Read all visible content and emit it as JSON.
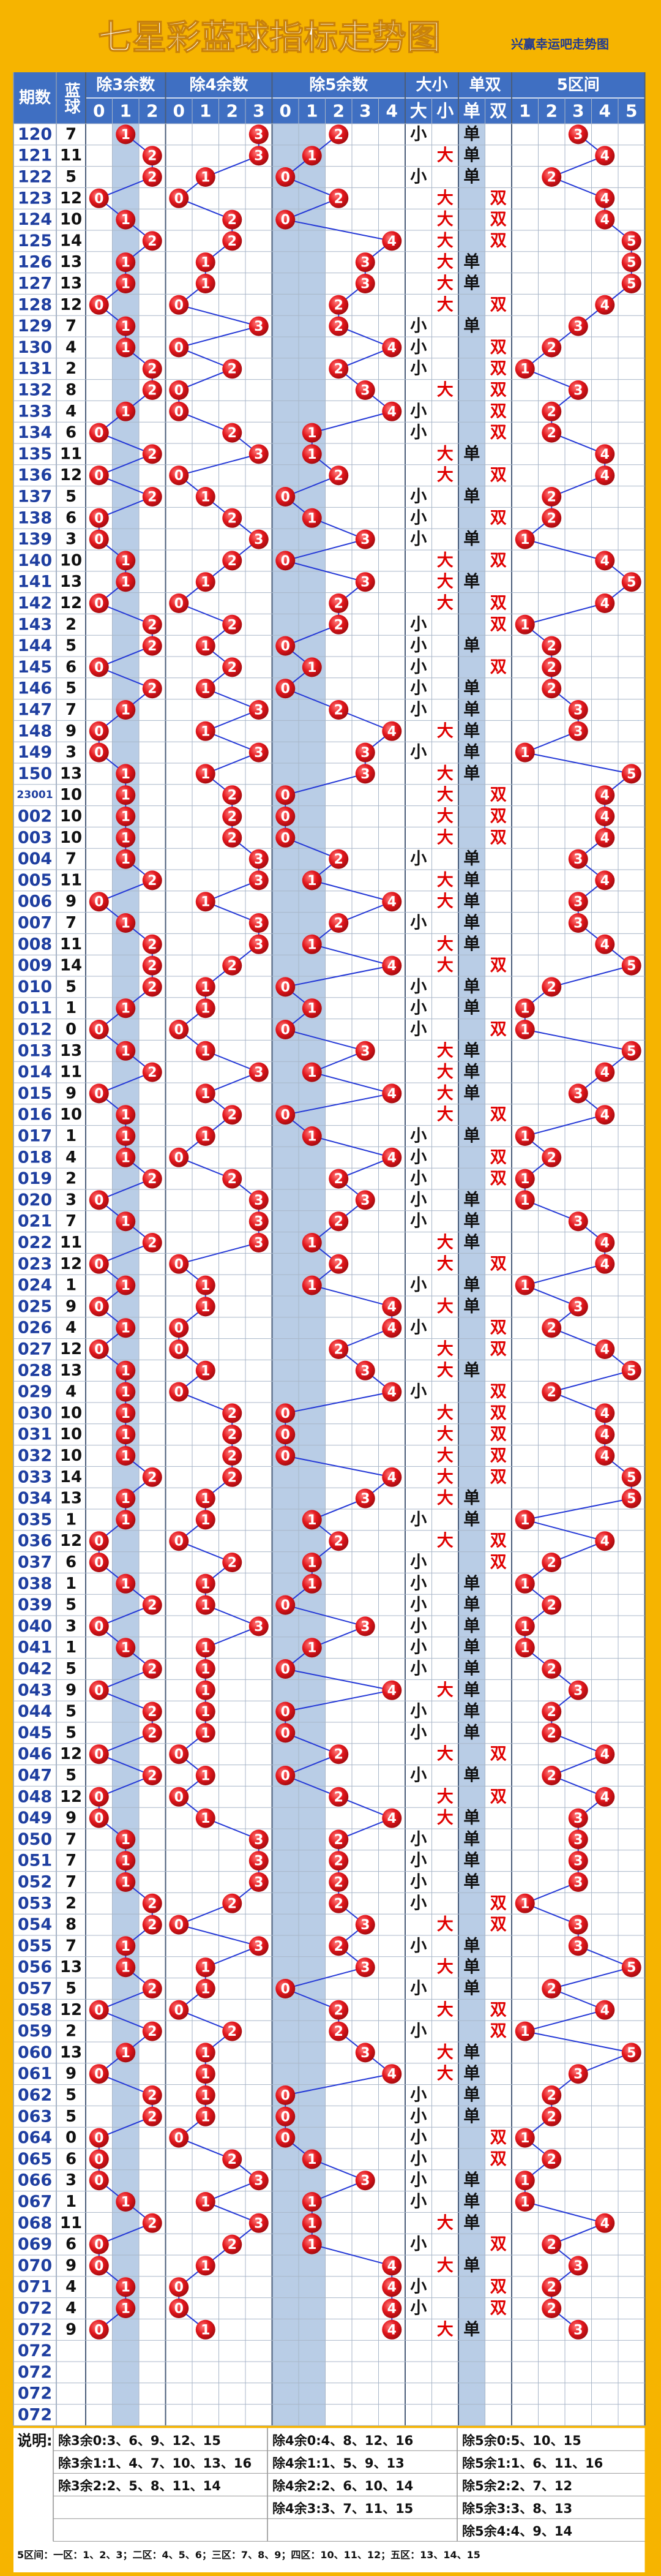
{
  "header": {
    "title": "七星彩蓝球指标走势图",
    "subtitle": "兴赢幸运吧走势图"
  },
  "table": {
    "columns": {
      "period": "期数",
      "ball": "蓝球",
      "mod3": "除3余数",
      "mod4": "除4余数",
      "mod5": "除5余数",
      "size": "大小",
      "parity": "单双",
      "zone": "5区间"
    },
    "sub_headers": {
      "mod3": [
        "0",
        "1",
        "2"
      ],
      "mod4": [
        "0",
        "1",
        "2",
        "3"
      ],
      "mod5": [
        "0",
        "1",
        "2",
        "3",
        "4"
      ],
      "size": [
        "大",
        "小"
      ],
      "parity": [
        "单",
        "双"
      ],
      "zone": [
        "1",
        "2",
        "3",
        "4",
        "5"
      ]
    },
    "rows": [
      [
        "120",
        7,
        1,
        3,
        2,
        "小",
        "单",
        3
      ],
      [
        "121",
        11,
        2,
        3,
        1,
        "大",
        "单",
        4
      ],
      [
        "122",
        5,
        2,
        1,
        0,
        "小",
        "单",
        2
      ],
      [
        "123",
        12,
        0,
        0,
        2,
        "大",
        "双",
        4
      ],
      [
        "124",
        10,
        1,
        2,
        0,
        "大",
        "双",
        4
      ],
      [
        "125",
        14,
        2,
        2,
        4,
        "大",
        "双",
        5
      ],
      [
        "126",
        13,
        1,
        1,
        3,
        "大",
        "单",
        5
      ],
      [
        "127",
        13,
        1,
        1,
        3,
        "大",
        "单",
        5
      ],
      [
        "128",
        12,
        0,
        0,
        2,
        "大",
        "双",
        4
      ],
      [
        "129",
        7,
        1,
        3,
        2,
        "小",
        "单",
        3
      ],
      [
        "130",
        4,
        1,
        0,
        4,
        "小",
        "双",
        2
      ],
      [
        "131",
        2,
        2,
        2,
        2,
        "小",
        "双",
        1
      ],
      [
        "132",
        8,
        2,
        0,
        3,
        "大",
        "双",
        3
      ],
      [
        "133",
        4,
        1,
        0,
        4,
        "小",
        "双",
        2
      ],
      [
        "134",
        6,
        0,
        2,
        1,
        "小",
        "双",
        2
      ],
      [
        "135",
        11,
        2,
        3,
        1,
        "大",
        "单",
        4
      ],
      [
        "136",
        12,
        0,
        0,
        2,
        "大",
        "双",
        4
      ],
      [
        "137",
        5,
        2,
        1,
        0,
        "小",
        "单",
        2
      ],
      [
        "138",
        6,
        0,
        2,
        1,
        "小",
        "双",
        2
      ],
      [
        "139",
        3,
        0,
        3,
        3,
        "小",
        "单",
        1
      ],
      [
        "140",
        10,
        1,
        2,
        0,
        "大",
        "双",
        4
      ],
      [
        "141",
        13,
        1,
        1,
        3,
        "大",
        "单",
        5
      ],
      [
        "142",
        12,
        0,
        0,
        2,
        "大",
        "双",
        4
      ],
      [
        "143",
        2,
        2,
        2,
        2,
        "小",
        "双",
        1
      ],
      [
        "144",
        5,
        2,
        1,
        0,
        "小",
        "单",
        2
      ],
      [
        "145",
        6,
        0,
        2,
        1,
        "小",
        "双",
        2
      ],
      [
        "146",
        5,
        2,
        1,
        0,
        "小",
        "单",
        2
      ],
      [
        "147",
        7,
        1,
        3,
        2,
        "小",
        "单",
        3
      ],
      [
        "148",
        9,
        0,
        1,
        4,
        "大",
        "单",
        3
      ],
      [
        "149",
        3,
        0,
        3,
        3,
        "小",
        "单",
        1
      ],
      [
        "150",
        13,
        1,
        1,
        3,
        "大",
        "单",
        5
      ],
      [
        "23001",
        10,
        1,
        2,
        0,
        "大",
        "双",
        4
      ],
      [
        "002",
        10,
        1,
        2,
        0,
        "大",
        "双",
        4
      ],
      [
        "003",
        10,
        1,
        2,
        0,
        "大",
        "双",
        4
      ],
      [
        "004",
        7,
        1,
        3,
        2,
        "小",
        "单",
        3
      ],
      [
        "005",
        11,
        2,
        3,
        1,
        "大",
        "单",
        4
      ],
      [
        "006",
        9,
        0,
        1,
        4,
        "大",
        "单",
        3
      ],
      [
        "007",
        7,
        1,
        3,
        2,
        "小",
        "单",
        3
      ],
      [
        "008",
        11,
        2,
        3,
        1,
        "大",
        "单",
        4
      ],
      [
        "009",
        14,
        2,
        2,
        4,
        "大",
        "双",
        5
      ],
      [
        "010",
        5,
        2,
        1,
        0,
        "小",
        "单",
        2
      ],
      [
        "011",
        1,
        1,
        1,
        1,
        "小",
        "单",
        1
      ],
      [
        "012",
        0,
        0,
        0,
        0,
        "小",
        "双",
        1
      ],
      [
        "013",
        13,
        1,
        1,
        3,
        "大",
        "单",
        5
      ],
      [
        "014",
        11,
        2,
        3,
        1,
        "大",
        "单",
        4
      ],
      [
        "015",
        9,
        0,
        1,
        4,
        "大",
        "单",
        3
      ],
      [
        "016",
        10,
        1,
        2,
        0,
        "大",
        "双",
        4
      ],
      [
        "017",
        1,
        1,
        1,
        1,
        "小",
        "单",
        1
      ],
      [
        "018",
        4,
        1,
        0,
        4,
        "小",
        "双",
        2
      ],
      [
        "019",
        2,
        2,
        2,
        2,
        "小",
        "双",
        1
      ],
      [
        "020",
        3,
        0,
        3,
        3,
        "小",
        "单",
        1
      ],
      [
        "021",
        7,
        1,
        3,
        2,
        "小",
        "单",
        3
      ],
      [
        "022",
        11,
        2,
        3,
        1,
        "大",
        "单",
        4
      ],
      [
        "023",
        12,
        0,
        0,
        2,
        "大",
        "双",
        4
      ],
      [
        "024",
        1,
        1,
        1,
        1,
        "小",
        "单",
        1
      ],
      [
        "025",
        9,
        0,
        1,
        4,
        "大",
        "单",
        3
      ],
      [
        "026",
        4,
        1,
        0,
        4,
        "小",
        "双",
        2
      ],
      [
        "027",
        12,
        0,
        0,
        2,
        "大",
        "双",
        4
      ],
      [
        "028",
        13,
        1,
        1,
        3,
        "大",
        "单",
        5
      ],
      [
        "029",
        4,
        1,
        0,
        4,
        "小",
        "双",
        2
      ],
      [
        "030",
        10,
        1,
        2,
        0,
        "大",
        "双",
        4
      ],
      [
        "031",
        10,
        1,
        2,
        0,
        "大",
        "双",
        4
      ],
      [
        "032",
        10,
        1,
        2,
        0,
        "大",
        "双",
        4
      ],
      [
        "033",
        14,
        2,
        2,
        4,
        "大",
        "双",
        5
      ],
      [
        "034",
        13,
        1,
        1,
        3,
        "大",
        "单",
        5
      ],
      [
        "035",
        1,
        1,
        1,
        1,
        "小",
        "单",
        1
      ],
      [
        "036",
        12,
        0,
        0,
        2,
        "大",
        "双",
        4
      ],
      [
        "037",
        6,
        0,
        2,
        1,
        "小",
        "双",
        2
      ],
      [
        "038",
        1,
        1,
        1,
        1,
        "小",
        "单",
        1
      ],
      [
        "039",
        5,
        2,
        1,
        0,
        "小",
        "单",
        2
      ],
      [
        "040",
        3,
        0,
        3,
        3,
        "小",
        "单",
        1
      ],
      [
        "041",
        1,
        1,
        1,
        1,
        "小",
        "单",
        1
      ],
      [
        "042",
        5,
        2,
        1,
        0,
        "小",
        "单",
        2
      ],
      [
        "043",
        9,
        0,
        1,
        4,
        "大",
        "单",
        3
      ],
      [
        "044",
        5,
        2,
        1,
        0,
        "小",
        "单",
        2
      ],
      [
        "045",
        5,
        2,
        1,
        0,
        "小",
        "单",
        2
      ],
      [
        "046",
        12,
        0,
        0,
        2,
        "大",
        "双",
        4
      ],
      [
        "047",
        5,
        2,
        1,
        0,
        "小",
        "单",
        2
      ],
      [
        "048",
        12,
        0,
        0,
        2,
        "大",
        "双",
        4
      ],
      [
        "049",
        9,
        0,
        1,
        4,
        "大",
        "单",
        3
      ],
      [
        "050",
        7,
        1,
        3,
        2,
        "小",
        "单",
        3
      ],
      [
        "051",
        7,
        1,
        3,
        2,
        "小",
        "单",
        3
      ],
      [
        "052",
        7,
        1,
        3,
        2,
        "小",
        "单",
        3
      ],
      [
        "053",
        2,
        2,
        2,
        2,
        "小",
        "双",
        1
      ],
      [
        "054",
        8,
        2,
        0,
        3,
        "大",
        "双",
        3
      ],
      [
        "055",
        7,
        1,
        3,
        2,
        "小",
        "单",
        3
      ],
      [
        "056",
        13,
        1,
        1,
        3,
        "大",
        "单",
        5
      ],
      [
        "057",
        5,
        2,
        1,
        0,
        "小",
        "单",
        2
      ],
      [
        "058",
        12,
        0,
        0,
        2,
        "大",
        "双",
        4
      ],
      [
        "059",
        2,
        2,
        2,
        2,
        "小",
        "双",
        1
      ],
      [
        "060",
        13,
        1,
        1,
        3,
        "大",
        "单",
        5
      ],
      [
        "061",
        9,
        0,
        1,
        4,
        "大",
        "单",
        3
      ],
      [
        "062",
        5,
        2,
        1,
        0,
        "小",
        "单",
        2
      ],
      [
        "063",
        5,
        2,
        1,
        0,
        "小",
        "单",
        2
      ],
      [
        "064",
        0,
        0,
        0,
        0,
        "小",
        "双",
        1
      ],
      [
        "065",
        6,
        0,
        2,
        1,
        "小",
        "双",
        2
      ],
      [
        "066",
        3,
        0,
        3,
        3,
        "小",
        "单",
        1
      ],
      [
        "067",
        1,
        1,
        1,
        1,
        "小",
        "单",
        1
      ],
      [
        "068",
        11,
        2,
        3,
        1,
        "大",
        "单",
        4
      ],
      [
        "069",
        6,
        0,
        2,
        1,
        "小",
        "双",
        2
      ],
      [
        "070",
        9,
        0,
        1,
        4,
        "大",
        "单",
        3
      ],
      [
        "071",
        4,
        1,
        0,
        4,
        "小",
        "双",
        2
      ],
      [
        "072",
        4,
        1,
        0,
        4,
        "小",
        "双",
        2
      ],
      [
        "072",
        9,
        0,
        1,
        4,
        "大",
        "单",
        3
      ],
      [
        "072"
      ],
      [
        "072"
      ],
      [
        "072"
      ],
      [
        "072"
      ]
    ]
  },
  "notes": {
    "label": "说明:",
    "mod3": [
      "除3余0:3、6、9、12、15",
      "除3余1:1、4、7、10、13、16",
      "除3余2:2、5、8、11、14"
    ],
    "mod4": [
      "除4余0:4、8、12、16",
      "除4余1:1、5、9、13",
      "除4余2:2、6、10、14",
      "除4余3:3、7、11、15"
    ],
    "mod5": [
      "除5余0:5、10、15",
      "除5余1:1、6、11、16",
      "除5余2:2、7、12",
      "除5余3:3、8、13",
      "除5余4:4、9、14"
    ],
    "zones": "5区间：一区：1、2、3；二区：4、5、6；三区：7、8、9；四区：10、11、12；五区：13、14、15"
  }
}
